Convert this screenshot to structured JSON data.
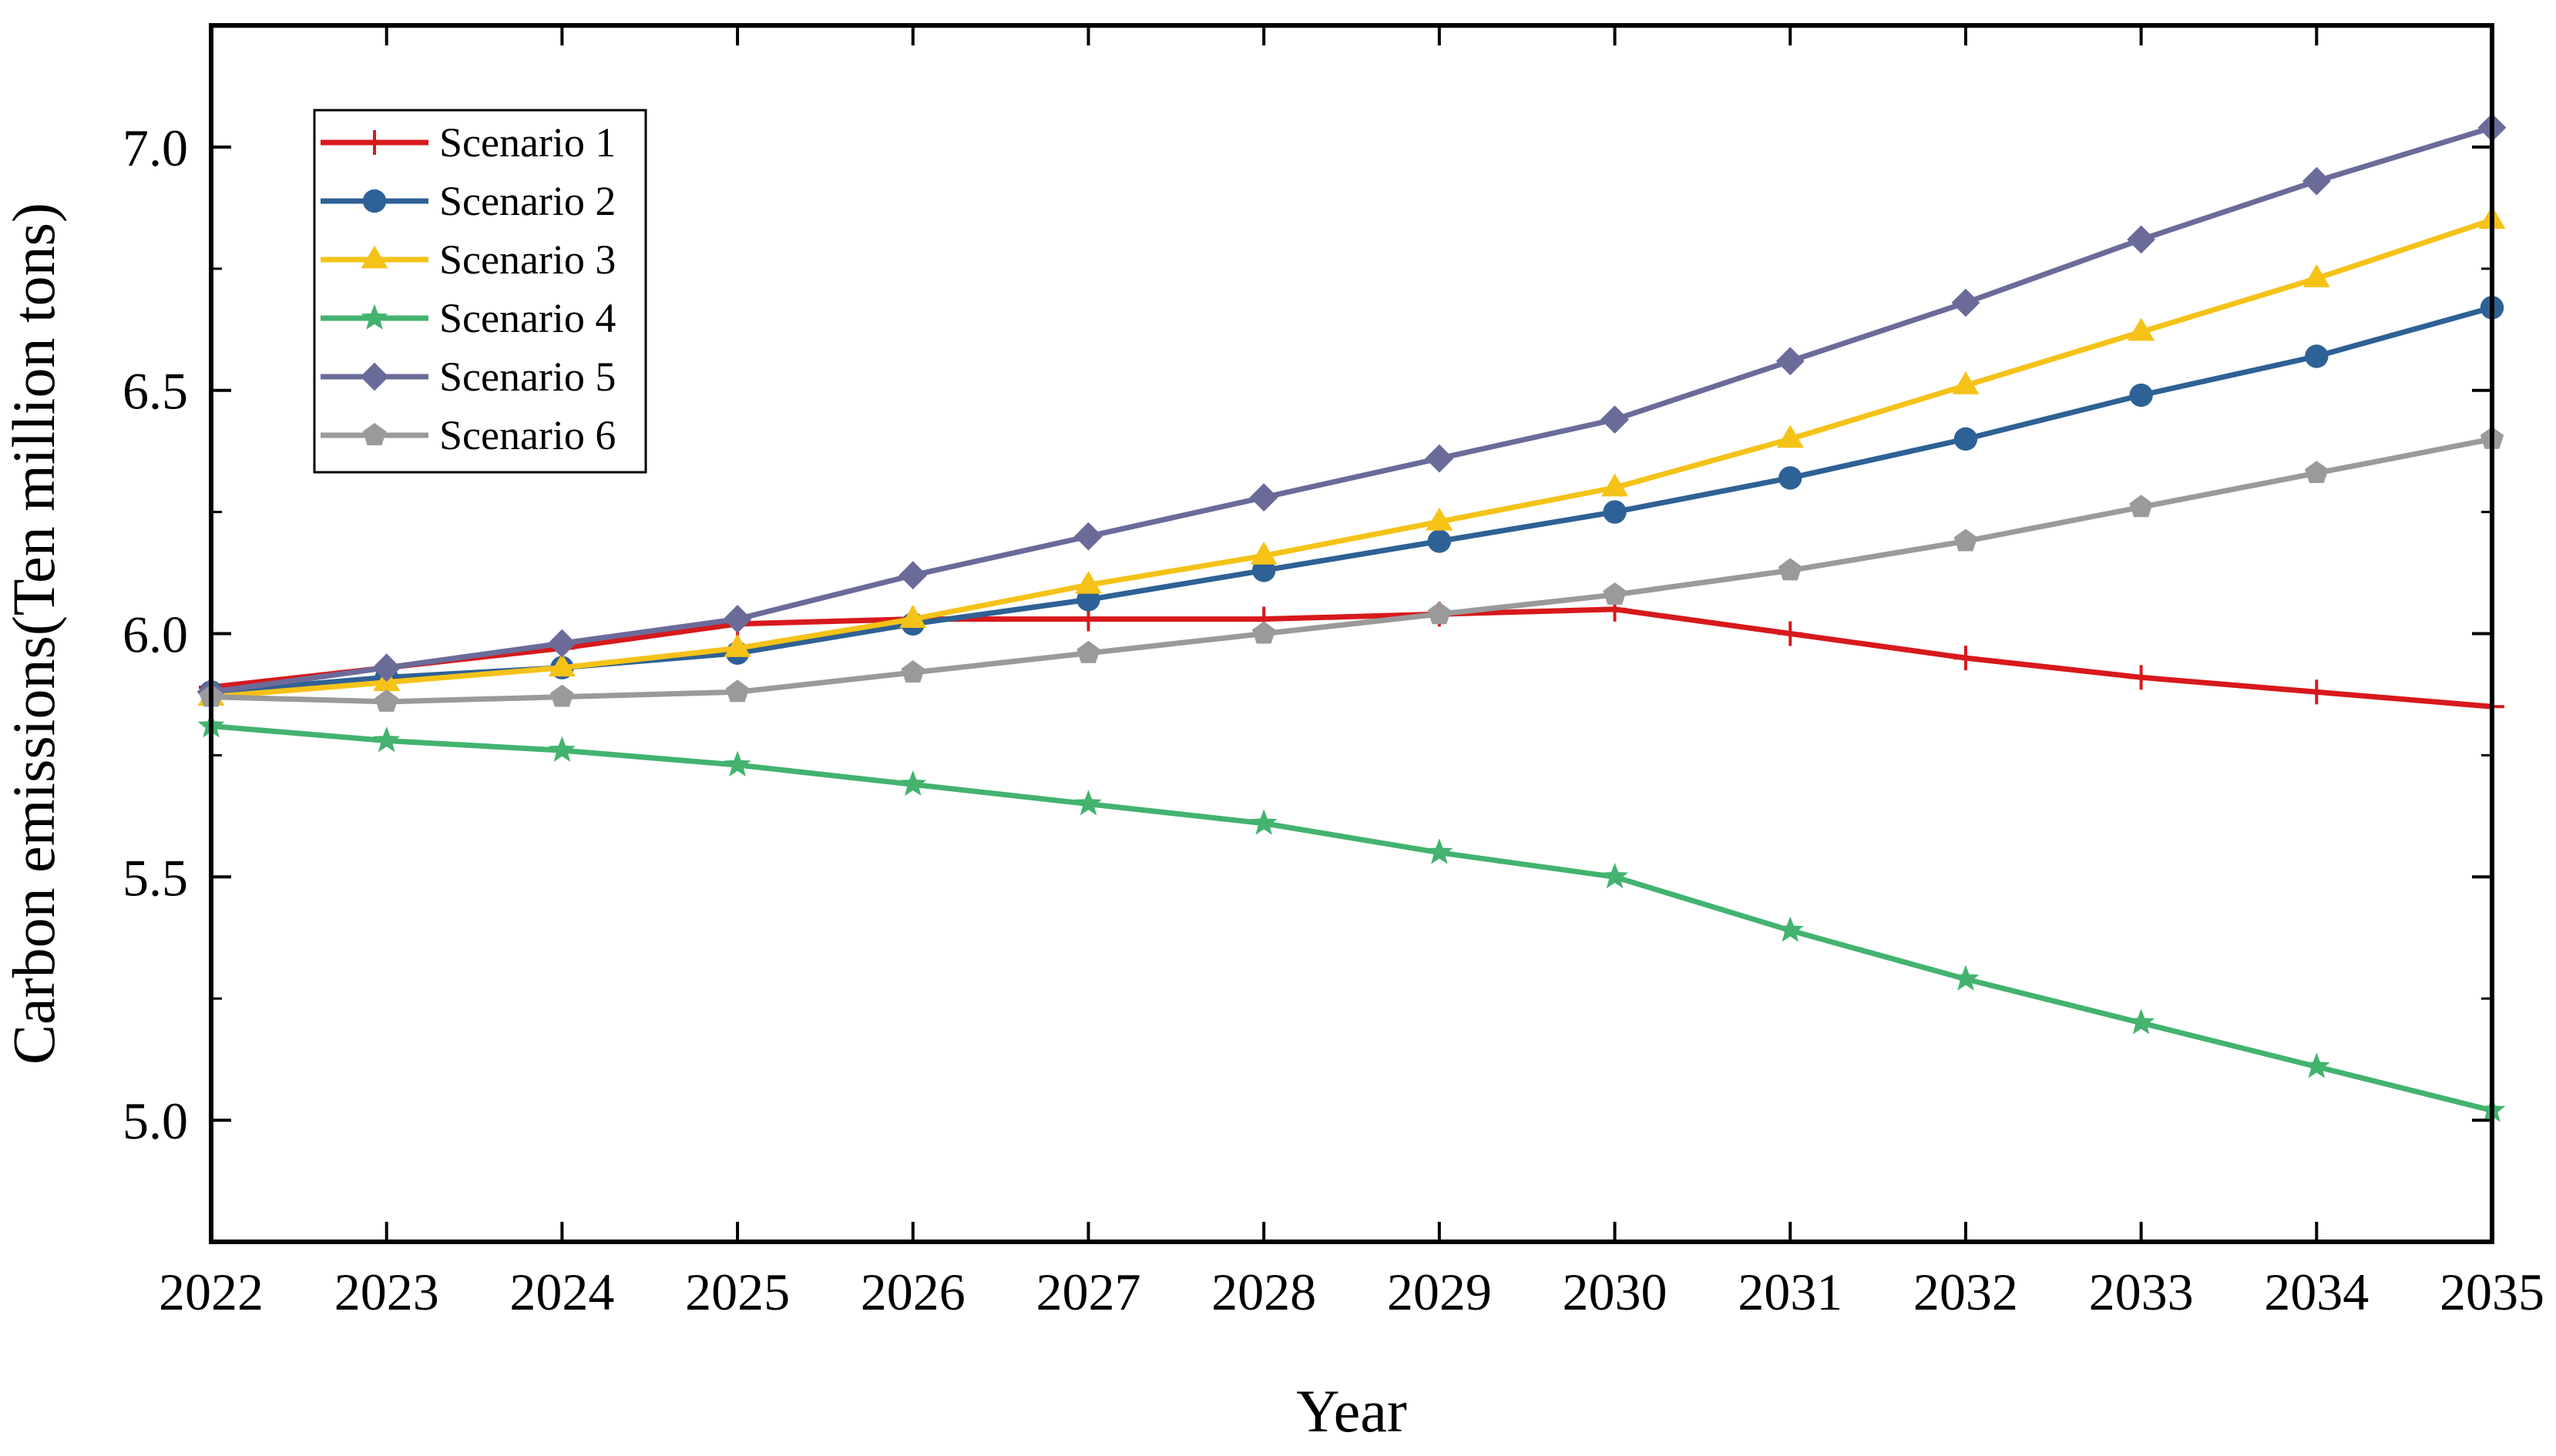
{
  "chart_data": {
    "type": "line",
    "title": "",
    "xlabel": "Year",
    "ylabel": "Carbon emissions(Ten million tons)",
    "x": [
      2022,
      2023,
      2024,
      2025,
      2026,
      2027,
      2028,
      2029,
      2030,
      2031,
      2032,
      2033,
      2034,
      2035
    ],
    "xlim": [
      2022,
      2035
    ],
    "ylim": [
      4.75,
      7.25
    ],
    "yticks": [
      5.0,
      5.5,
      6.0,
      6.5,
      7.0
    ],
    "ytick_labels": [
      "5.0",
      "5.5",
      "6.0",
      "6.5",
      "7.0"
    ],
    "xtick_labels": [
      "2022",
      "2023",
      "2024",
      "2025",
      "2026",
      "2027",
      "2028",
      "2029",
      "2030",
      "2031",
      "2032",
      "2033",
      "2034",
      "2035"
    ],
    "grid": false,
    "legend_position": "top-left",
    "series": [
      {
        "name": "Scenario 1",
        "color": "#d7191c",
        "marker": "plus",
        "values": [
          5.89,
          5.93,
          5.97,
          6.02,
          6.03,
          6.03,
          6.03,
          6.04,
          6.05,
          6.0,
          5.95,
          5.91,
          5.88,
          5.85
        ]
      },
      {
        "name": "Scenario 2",
        "color": "#2e6195",
        "marker": "circle",
        "values": [
          5.88,
          5.91,
          5.93,
          5.96,
          6.02,
          6.07,
          6.13,
          6.19,
          6.25,
          6.32,
          6.4,
          6.49,
          6.57,
          6.67
        ]
      },
      {
        "name": "Scenario 3",
        "color": "#f5c218",
        "marker": "triangle",
        "values": [
          5.87,
          5.9,
          5.93,
          5.97,
          6.03,
          6.1,
          6.16,
          6.23,
          6.3,
          6.4,
          6.51,
          6.62,
          6.73,
          6.85
        ]
      },
      {
        "name": "Scenario 4",
        "color": "#43b36f",
        "marker": "star",
        "values": [
          5.81,
          5.78,
          5.76,
          5.73,
          5.69,
          5.65,
          5.61,
          5.55,
          5.5,
          5.39,
          5.29,
          5.2,
          5.11,
          5.02
        ]
      },
      {
        "name": "Scenario 5",
        "color": "#6b6b9a",
        "marker": "diamond",
        "values": [
          5.88,
          5.93,
          5.98,
          6.03,
          6.12,
          6.2,
          6.28,
          6.36,
          6.44,
          6.56,
          6.68,
          6.81,
          6.93,
          7.04
        ]
      },
      {
        "name": "Scenario 6",
        "color": "#9a9a9a",
        "marker": "pentagon",
        "values": [
          5.87,
          5.86,
          5.87,
          5.88,
          5.92,
          5.96,
          6.0,
          6.04,
          6.08,
          6.13,
          6.19,
          6.26,
          6.33,
          6.4
        ]
      }
    ]
  }
}
